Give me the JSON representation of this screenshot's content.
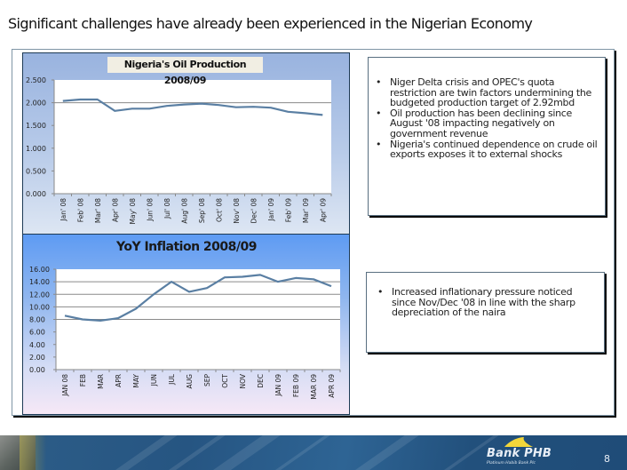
{
  "slide": {
    "title": "Significant challenges have already been experienced in the Nigerian Economy",
    "page_number": "8"
  },
  "oil_panel": {
    "title": "Nigeria's Oil Production  2008/09"
  },
  "inflation_panel": {
    "title": "YoY Inflation 2008/09"
  },
  "oil_commentary": {
    "bullets": [
      "Niger Delta crisis and OPEC's quota restriction are twin factors undermining the budgeted production target of 2.92mbd",
      "Oil production has been declining since August '08 impacting negatively on government revenue",
      "Nigeria's continued dependence on crude oil exports exposes it to external shocks"
    ]
  },
  "inflation_commentary": {
    "bullets": [
      "Increased inflationary pressure noticed since Nov/Dec '08 in line with the sharp depreciation of the naira"
    ]
  },
  "footer": {
    "logo_name": "Bank PHB",
    "logo_tagline": "Platinum Habib Bank Plc",
    "colors": {
      "footer_blue": "#265582",
      "logo_wing": "#f2d63a"
    }
  },
  "colors": {
    "line": "#5a7fa3",
    "grid": "#8a8a8a",
    "plot_bg": "#ffffff"
  },
  "chart_data": [
    {
      "type": "line",
      "title": "Nigeria's Oil Production  2008/09",
      "xlabel": "",
      "ylabel": "",
      "categories": [
        "Jan' 08",
        "Feb' 08",
        "Mar' 08",
        "Apr' 08",
        "May' 08",
        "Jun' 08",
        "Jul' 08",
        "Aug' 08",
        "Sep' 08",
        "Oct' 08",
        "Nov' 08",
        "Dec' 08",
        "Jan' 09",
        "Feb' 09",
        "Mar' 09",
        "Apr' 09"
      ],
      "values": [
        2.04,
        2.07,
        2.07,
        1.82,
        1.87,
        1.87,
        1.93,
        1.96,
        1.98,
        1.95,
        1.9,
        1.91,
        1.89,
        1.8,
        1.77,
        1.73
      ],
      "ylim": [
        0,
        2.5
      ],
      "yticks": [
        "0.000",
        "0.500",
        "1.000",
        "1.500",
        "2.000",
        "2.500"
      ],
      "grid": "horizontal at 2.000 only",
      "legend": "none"
    },
    {
      "type": "line",
      "title": "YoY Inflation 2008/09",
      "xlabel": "",
      "ylabel": "",
      "categories": [
        "JAN 08",
        "FEB",
        "MAR",
        "APR",
        "MAY",
        "JUN",
        "JUL",
        "AUG",
        "SEP",
        "OCT",
        "NOV",
        "DEC",
        "JAN 09",
        "FEB 09",
        "MAR 09",
        "APR 09"
      ],
      "values": [
        8.6,
        8.0,
        7.8,
        8.2,
        9.7,
        12.0,
        14.0,
        12.4,
        13.0,
        14.7,
        14.8,
        15.1,
        14.0,
        14.6,
        14.4,
        13.3
      ],
      "ylim": [
        0,
        16
      ],
      "yticks": [
        "0.00",
        "2.00",
        "4.00",
        "6.00",
        "8.00",
        "10.00",
        "12.00",
        "14.00",
        "16.00"
      ],
      "grid": "horizontal at 8, 10, 12, 14",
      "legend": "none"
    }
  ]
}
